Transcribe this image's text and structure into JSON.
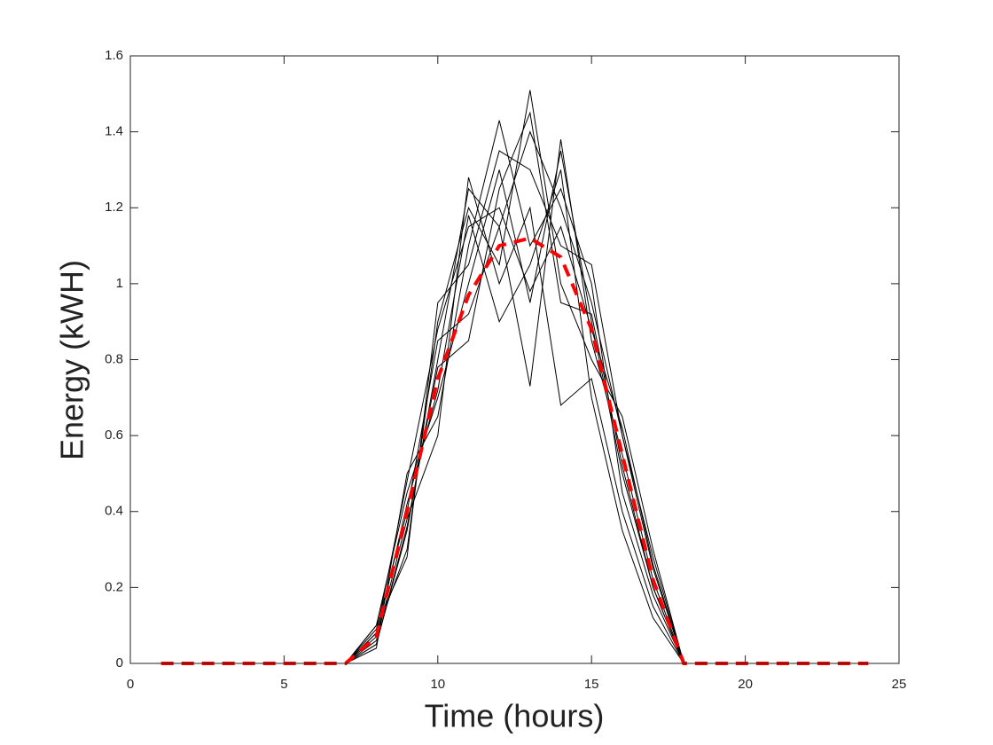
{
  "chart_data": {
    "type": "line",
    "xlabel": "Time (hours)",
    "ylabel": "Energy (kWH)",
    "x": [
      1,
      2,
      3,
      4,
      5,
      6,
      7,
      8,
      9,
      10,
      11,
      12,
      13,
      14,
      15,
      16,
      17,
      18,
      19,
      20,
      21,
      22,
      23,
      24
    ],
    "xlim": [
      0,
      25
    ],
    "xticks": [
      0,
      5,
      10,
      15,
      20,
      25
    ],
    "ylim": [
      0,
      1.6
    ],
    "yticks": [
      0,
      0.2,
      0.4,
      0.6,
      0.8,
      1,
      1.2,
      1.4,
      1.6
    ],
    "grid": false,
    "series": [
      {
        "color": "#000000",
        "values": [
          0,
          0,
          0,
          0,
          0,
          0,
          0,
          0.05,
          0.35,
          0.8,
          1.25,
          1.15,
          1.4,
          1.2,
          0.95,
          0.6,
          0.25,
          0,
          0,
          0,
          0,
          0,
          0,
          0
        ]
      },
      {
        "color": "#000000",
        "values": [
          0,
          0,
          0,
          0,
          0,
          0,
          0,
          0.1,
          0.45,
          0.7,
          1.0,
          1.3,
          0.95,
          1.35,
          0.9,
          0.5,
          0.2,
          0,
          0,
          0,
          0,
          0,
          0,
          0
        ]
      },
      {
        "color": "#000000",
        "values": [
          0,
          0,
          0,
          0,
          0,
          0,
          0,
          0.08,
          0.3,
          0.9,
          1.2,
          1.05,
          1.51,
          1.0,
          0.8,
          0.65,
          0.3,
          0,
          0,
          0,
          0,
          0,
          0,
          0
        ]
      },
      {
        "color": "#000000",
        "values": [
          0,
          0,
          0,
          0,
          0,
          0,
          0,
          0.04,
          0.5,
          0.65,
          1.1,
          1.43,
          1.1,
          1.25,
          1.0,
          0.45,
          0.18,
          0,
          0,
          0,
          0,
          0,
          0,
          0
        ]
      },
      {
        "color": "#000000",
        "values": [
          0,
          0,
          0,
          0,
          0,
          0,
          0,
          0.09,
          0.4,
          0.85,
          0.92,
          1.15,
          0.73,
          1.38,
          0.85,
          0.55,
          0.22,
          0,
          0,
          0,
          0,
          0,
          0,
          0
        ]
      },
      {
        "color": "#000000",
        "values": [
          0,
          0,
          0,
          0,
          0,
          0,
          0,
          0.06,
          0.38,
          0.6,
          1.28,
          1.0,
          1.2,
          0.68,
          0.75,
          0.4,
          0.15,
          0,
          0,
          0,
          0,
          0,
          0,
          0
        ]
      },
      {
        "color": "#000000",
        "values": [
          0,
          0,
          0,
          0,
          0,
          0,
          0,
          0.1,
          0.28,
          0.95,
          1.05,
          1.35,
          1.3,
          1.1,
          1.05,
          0.6,
          0.28,
          0,
          0,
          0,
          0,
          0,
          0,
          0
        ]
      },
      {
        "color": "#000000",
        "values": [
          0,
          0,
          0,
          0,
          0,
          0,
          0,
          0.07,
          0.42,
          0.72,
          1.18,
          0.9,
          1.05,
          1.3,
          0.7,
          0.35,
          0.12,
          0,
          0,
          0,
          0,
          0,
          0,
          0
        ]
      },
      {
        "color": "#000000",
        "values": [
          0,
          0,
          0,
          0,
          0,
          0,
          0,
          0.05,
          0.36,
          0.78,
          0.85,
          1.25,
          1.45,
          0.95,
          0.92,
          0.52,
          0.2,
          0,
          0,
          0,
          0,
          0,
          0,
          0
        ]
      },
      {
        "color": "#000000",
        "values": [
          0,
          0,
          0,
          0,
          0,
          0,
          0,
          0.08,
          0.48,
          0.88,
          1.15,
          1.2,
          0.98,
          1.15,
          0.88,
          0.62,
          0.26,
          0,
          0,
          0,
          0,
          0,
          0,
          0
        ]
      },
      {
        "color": "#ff0000",
        "line_style": "dashed",
        "values": [
          0,
          0,
          0,
          0,
          0,
          0,
          0,
          0.07,
          0.4,
          0.75,
          0.97,
          1.1,
          1.12,
          1.07,
          0.88,
          0.55,
          0.22,
          0,
          0,
          0,
          0,
          0,
          0,
          0
        ]
      }
    ]
  }
}
